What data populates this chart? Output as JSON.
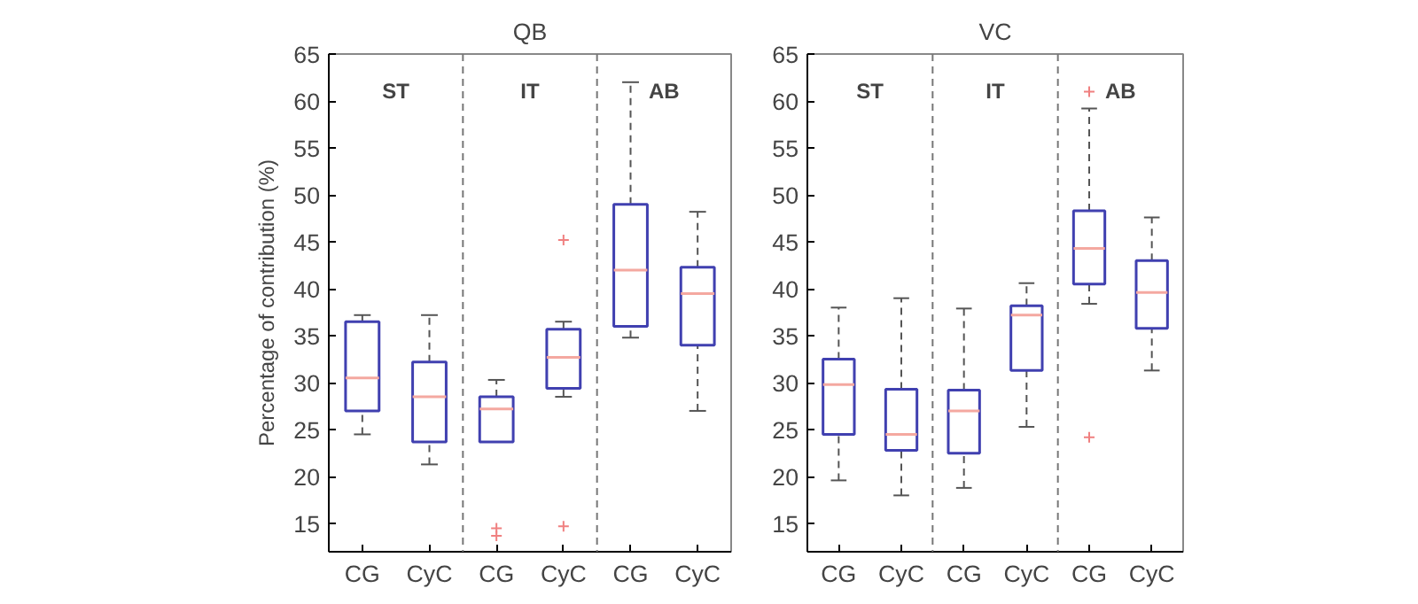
{
  "chart_data": [
    {
      "type": "box",
      "title": "QB",
      "ylabel": "Percentage of contribution (%)",
      "categories": [
        "CG",
        "CyC",
        "CG",
        "CyC",
        "CG",
        "CyC"
      ],
      "ylim": [
        12,
        65
      ],
      "yticks": [
        15,
        20,
        25,
        30,
        35,
        40,
        45,
        50,
        55,
        60,
        65
      ],
      "color": "#4040b0",
      "marker": "cross",
      "grid": false,
      "boxes": [
        {
          "low": 24.5,
          "q1": 27,
          "median": 30.5,
          "q3": 36.5,
          "high": 37.2
        },
        {
          "low": 21.3,
          "q1": 23.7,
          "median": 28.5,
          "q3": 32.2,
          "high": 37.2
        },
        {
          "low": 23.7,
          "q1": 23.7,
          "median": 27.2,
          "q3": 28.5,
          "high": 30.3,
          "outliers": [
            14.5,
            13.7
          ]
        },
        {
          "low": 28.5,
          "q1": 29.4,
          "median": 32.7,
          "q3": 35.7,
          "high": 36.5,
          "outliers": [
            45.2,
            14.7
          ]
        },
        {
          "low": 34.8,
          "q1": 36,
          "median": 42,
          "q3": 49,
          "high": 62
        },
        {
          "low": 27,
          "q1": 34,
          "median": 39.5,
          "q3": 42.3,
          "high": 48.2
        }
      ],
      "annotations": [
        "ST",
        "IT",
        "AB"
      ]
    },
    {
      "type": "box",
      "title": "VC",
      "categories": [
        "CG",
        "CyC",
        "CG",
        "CyC",
        "CG",
        "CyC"
      ],
      "ylim": [
        12,
        65
      ],
      "yticks": [
        15,
        20,
        25,
        30,
        35,
        40,
        45,
        50,
        55,
        60,
        65
      ],
      "color": "#4040b0",
      "marker": "cross",
      "grid": false,
      "boxes": [
        {
          "low": 19.6,
          "q1": 24.5,
          "median": 29.8,
          "q3": 32.5,
          "high": 38
        },
        {
          "low": 18,
          "q1": 22.8,
          "median": 24.5,
          "q3": 29.3,
          "high": 39
        },
        {
          "low": 18.8,
          "q1": 22.5,
          "median": 27,
          "q3": 29.2,
          "high": 37.9
        },
        {
          "low": 25.3,
          "q1": 31.3,
          "median": 37.2,
          "q3": 38.2,
          "high": 40.6
        },
        {
          "low": 38.4,
          "q1": 40.5,
          "median": 44.3,
          "q3": 48.3,
          "high": 59.2,
          "outliers": [
            61,
            24.2
          ]
        },
        {
          "low": 31.3,
          "q1": 35.8,
          "median": 39.6,
          "q3": 43,
          "high": 47.6
        }
      ],
      "annotations": [
        "ST",
        "IT",
        "AB"
      ]
    }
  ]
}
